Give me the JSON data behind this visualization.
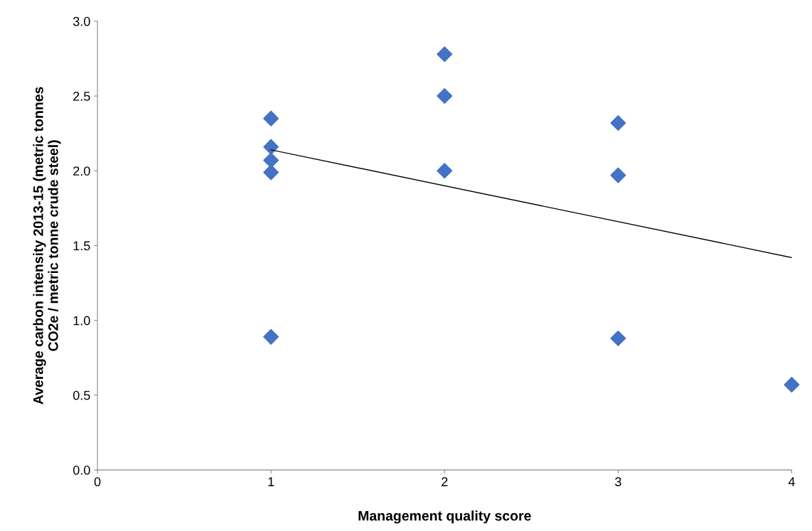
{
  "chart_data": {
    "type": "scatter",
    "xlabel": "Management quality score",
    "ylabel": "Average carbon intensity 2013-15 (metric tonnes\nCO2e / metric tonne crude steel)",
    "xlim": [
      0,
      4
    ],
    "xticks": [
      0,
      1,
      2,
      3,
      4
    ],
    "ylim": [
      0,
      3.0
    ],
    "yticks": [
      {
        "value": 0,
        "label": "0.0"
      },
      {
        "value": 0.5,
        "label": "0.5"
      },
      {
        "value": 1.0,
        "label": "1.0"
      },
      {
        "value": 1.5,
        "label": "1.5"
      },
      {
        "value": 2.0,
        "label": "2.0"
      },
      {
        "value": 2.5,
        "label": "2.5"
      },
      {
        "value": 3.0,
        "label": "3.0"
      }
    ],
    "grid": false,
    "legend": false,
    "marker": "diamond",
    "series": [
      {
        "color": "#4472c4",
        "x": [
          1,
          1,
          1,
          1,
          1,
          2,
          2,
          2,
          3,
          3,
          3,
          4
        ],
        "values": [
          2.35,
          2.16,
          2.07,
          1.99,
          0.89,
          2.78,
          2.5,
          2.0,
          2.32,
          1.97,
          0.88,
          0.57
        ]
      },
      {
        "type": "line",
        "marker": "none",
        "color": "#000000",
        "x": [
          1,
          4
        ],
        "values": [
          2.14,
          1.42
        ]
      }
    ]
  }
}
